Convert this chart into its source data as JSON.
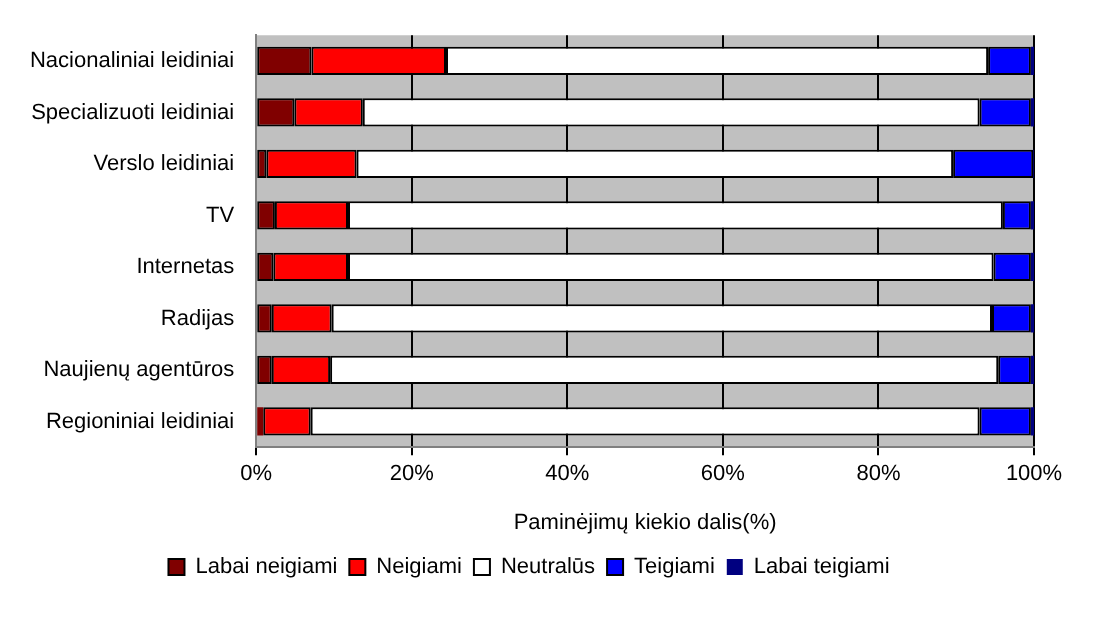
{
  "chart_data": {
    "type": "bar",
    "orientation": "horizontal",
    "stacked": true,
    "xlabel": "Paminėjimų kiekio dalis(%)",
    "categories": [
      "Nacionaliniai leidiniai",
      "Specializuoti leidiniai",
      "Verslo leidiniai",
      "TV",
      "Internetas",
      "Radijas",
      "Naujienų agentūros",
      "Regioniniai leidiniai"
    ],
    "series": [
      {
        "name": "Labai neigiami",
        "color": "#800000",
        "values": [
          7.1,
          4.9,
          1.3,
          2.4,
          2.2,
          2.0,
          2.0,
          0.9
        ]
      },
      {
        "name": "Neigiami",
        "color": "#ff0000",
        "values": [
          17.3,
          8.8,
          11.6,
          9.4,
          9.6,
          7.7,
          7.5,
          6.1
        ]
      },
      {
        "name": "Neutralūs",
        "color": "#ffffff",
        "values": [
          69.7,
          79.3,
          76.7,
          84.2,
          83.0,
          84.9,
          85.9,
          86.0
        ]
      },
      {
        "name": "Teigiami",
        "color": "#0000ff",
        "values": [
          5.5,
          6.6,
          10.3,
          3.6,
          4.8,
          5.0,
          4.2,
          6.6
        ]
      },
      {
        "name": "Labai teigiami",
        "color": "#000080",
        "values": [
          0.4,
          0.4,
          0.1,
          0.4,
          0.4,
          0.4,
          0.4,
          0.4
        ]
      }
    ],
    "xlim": [
      0,
      100
    ],
    "xticks": [
      {
        "value": 0,
        "label": "0%"
      },
      {
        "value": 20,
        "label": "20%"
      },
      {
        "value": 40,
        "label": "40%"
      },
      {
        "value": 60,
        "label": "60%"
      },
      {
        "value": 80,
        "label": "80%"
      },
      {
        "value": 100,
        "label": "100%"
      }
    ],
    "grid": "x",
    "legend": "bottom"
  }
}
